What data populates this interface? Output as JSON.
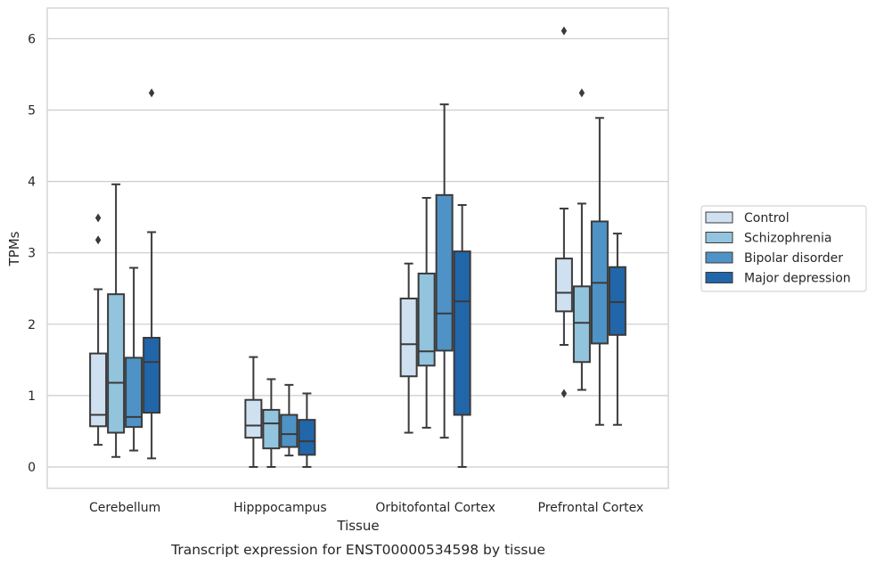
{
  "chart_data": {
    "type": "boxplot",
    "xlabel": "Tissue",
    "ylabel": "TPMs",
    "caption": "Transcript expression for ENST00000534598 by tissue",
    "ylim": [
      -0.3,
      6.43
    ],
    "yticks": [
      0,
      1,
      2,
      3,
      4,
      5,
      6
    ],
    "grid": "horizontal",
    "legend_position": "right",
    "categories": [
      "Cerebellum",
      "Hipppocampus",
      "Orbitofontal Cortex",
      "Prefrontal Cortex"
    ],
    "series": [
      {
        "name": "Control",
        "color": "#cfe0f1",
        "boxes": [
          {
            "whislo": 0.31,
            "q1": 0.57,
            "med": 0.73,
            "q3": 1.59,
            "whishi": 2.49,
            "fliers": [
              3.18,
              3.49
            ]
          },
          {
            "whislo": 0.0,
            "q1": 0.41,
            "med": 0.58,
            "q3": 0.94,
            "whishi": 1.54,
            "fliers": []
          },
          {
            "whislo": 0.48,
            "q1": 1.27,
            "med": 1.72,
            "q3": 2.36,
            "whishi": 2.85,
            "fliers": []
          },
          {
            "whislo": 1.71,
            "q1": 2.18,
            "med": 2.44,
            "q3": 2.92,
            "whishi": 3.62,
            "fliers": [
              1.03,
              6.11
            ]
          }
        ]
      },
      {
        "name": "Schizophrenia",
        "color": "#93c4de",
        "boxes": [
          {
            "whislo": 0.14,
            "q1": 0.48,
            "med": 1.18,
            "q3": 2.42,
            "whishi": 3.96,
            "fliers": []
          },
          {
            "whislo": 0.0,
            "q1": 0.26,
            "med": 0.61,
            "q3": 0.8,
            "whishi": 1.23,
            "fliers": []
          },
          {
            "whislo": 0.55,
            "q1": 1.42,
            "med": 1.62,
            "q3": 2.71,
            "whishi": 3.77,
            "fliers": []
          },
          {
            "whislo": 1.08,
            "q1": 1.47,
            "med": 2.02,
            "q3": 2.53,
            "whishi": 3.69,
            "fliers": [
              5.24
            ]
          }
        ]
      },
      {
        "name": "Bipolar disorder",
        "color": "#4f93c6",
        "boxes": [
          {
            "whislo": 0.23,
            "q1": 0.56,
            "med": 0.7,
            "q3": 1.53,
            "whishi": 2.79,
            "fliers": []
          },
          {
            "whislo": 0.16,
            "q1": 0.28,
            "med": 0.46,
            "q3": 0.73,
            "whishi": 1.15,
            "fliers": []
          },
          {
            "whislo": 0.41,
            "q1": 1.63,
            "med": 2.15,
            "q3": 3.81,
            "whishi": 5.08,
            "fliers": []
          },
          {
            "whislo": 0.59,
            "q1": 1.73,
            "med": 2.58,
            "q3": 3.44,
            "whishi": 4.89,
            "fliers": []
          }
        ]
      },
      {
        "name": "Major depression",
        "color": "#2166a9",
        "boxes": [
          {
            "whislo": 0.12,
            "q1": 0.76,
            "med": 1.47,
            "q3": 1.81,
            "whishi": 3.29,
            "fliers": [
              5.24
            ]
          },
          {
            "whislo": 0.0,
            "q1": 0.17,
            "med": 0.36,
            "q3": 0.66,
            "whishi": 1.03,
            "fliers": []
          },
          {
            "whislo": 0.0,
            "q1": 0.73,
            "med": 2.32,
            "q3": 3.02,
            "whishi": 3.67,
            "fliers": []
          },
          {
            "whislo": 0.59,
            "q1": 1.85,
            "med": 2.31,
            "q3": 2.8,
            "whishi": 3.27,
            "fliers": []
          }
        ]
      }
    ]
  }
}
